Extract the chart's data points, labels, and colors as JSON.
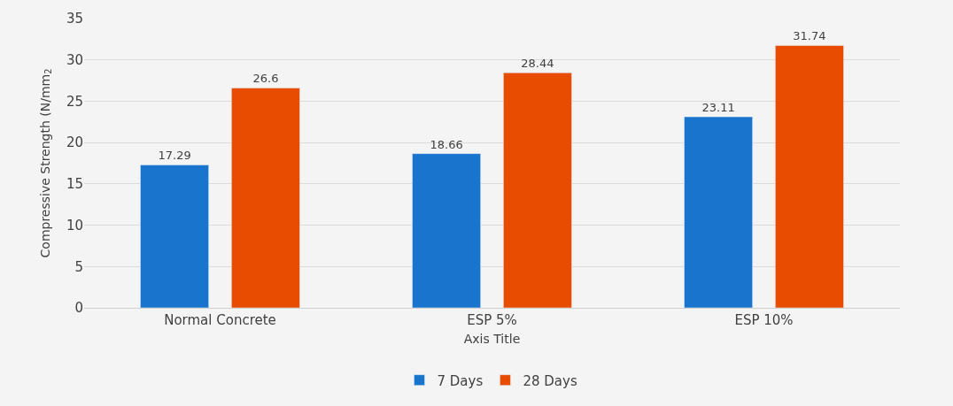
{
  "chart_data": {
    "type": "bar",
    "xlabel": "Axis Title",
    "ylabel": "Compressive Strength (N/mm$_{2}$",
    "categories": [
      "Normal Concrete",
      "ESP 5%",
      "ESP 10%"
    ],
    "series": [
      {
        "name": "7 Days",
        "color": "#1874cd",
        "values": [
          17.29,
          18.66,
          23.11
        ]
      },
      {
        "name": "28 Days",
        "color": "#e84c00",
        "values": [
          26.6,
          28.44,
          31.74
        ]
      }
    ],
    "ylim": [
      0,
      35
    ],
    "yticks": [
      0,
      5,
      10,
      15,
      20,
      25,
      30,
      35
    ],
    "grid": "y",
    "legend": "bottom",
    "data_labels": true
  }
}
